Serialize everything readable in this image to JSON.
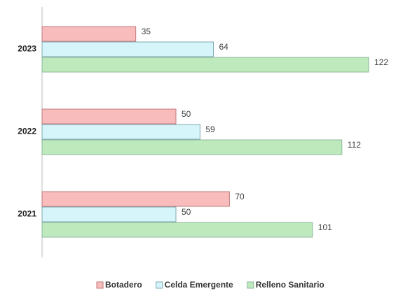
{
  "chart_data": {
    "type": "bar",
    "orientation": "horizontal",
    "categories": [
      "2023",
      "2022",
      "2021"
    ],
    "series": [
      {
        "name": "Botadero",
        "color": "#f9bcbc",
        "values": [
          35,
          50,
          70
        ]
      },
      {
        "name": "Celda Emergente",
        "color": "#d6f5fb",
        "values": [
          64,
          59,
          50
        ]
      },
      {
        "name": "Relleno Sanitario",
        "color": "#bde9bd",
        "values": [
          122,
          112,
          101
        ]
      }
    ],
    "legend": "bottom"
  }
}
